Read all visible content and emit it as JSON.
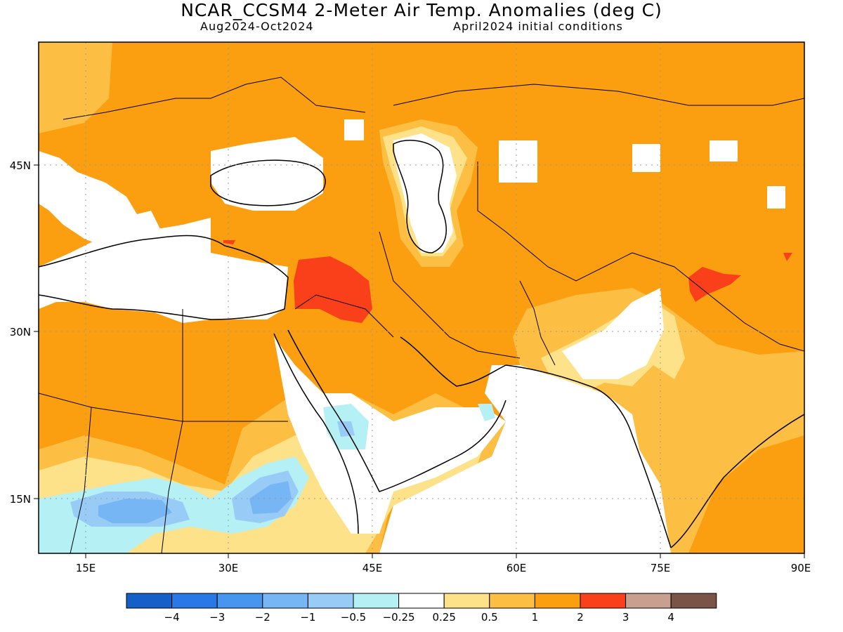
{
  "title": "NCAR_CCSM4 2-Meter Air Temp. Anomalies (deg C)",
  "subtitle_left": "Aug2024-Oct2024",
  "subtitle_right": "April2024 initial conditions",
  "lat_labels": [
    "45N",
    "30N",
    "15N"
  ],
  "lon_labels": [
    "15E",
    "30E",
    "45E",
    "60E",
    "75E",
    "90E"
  ],
  "colorbar": {
    "colors": [
      "#1560c8",
      "#2a78e8",
      "#4696f0",
      "#76b6f4",
      "#98ccf6",
      "#b4f0f4",
      "#ffffff",
      "#fde28a",
      "#fcbf44",
      "#fb9e10",
      "#f9401a",
      "#c9a090",
      "#7a5446"
    ],
    "labels": [
      "−4",
      "−3",
      "−2",
      "−1",
      "−0.5",
      "−0.25",
      "0.25",
      "0.5",
      "1",
      "2",
      "3",
      "4"
    ]
  },
  "colors": {
    "anom_1_2": "#fb9e10",
    "anom_05_1": "#fcbf44",
    "anom_025_05": "#fde28a",
    "anom_2_3": "#f9401a",
    "neg_025_05": "#b4f0f4",
    "neg_05_1": "#98ccf6",
    "neg_1_2": "#76b6f4"
  }
}
